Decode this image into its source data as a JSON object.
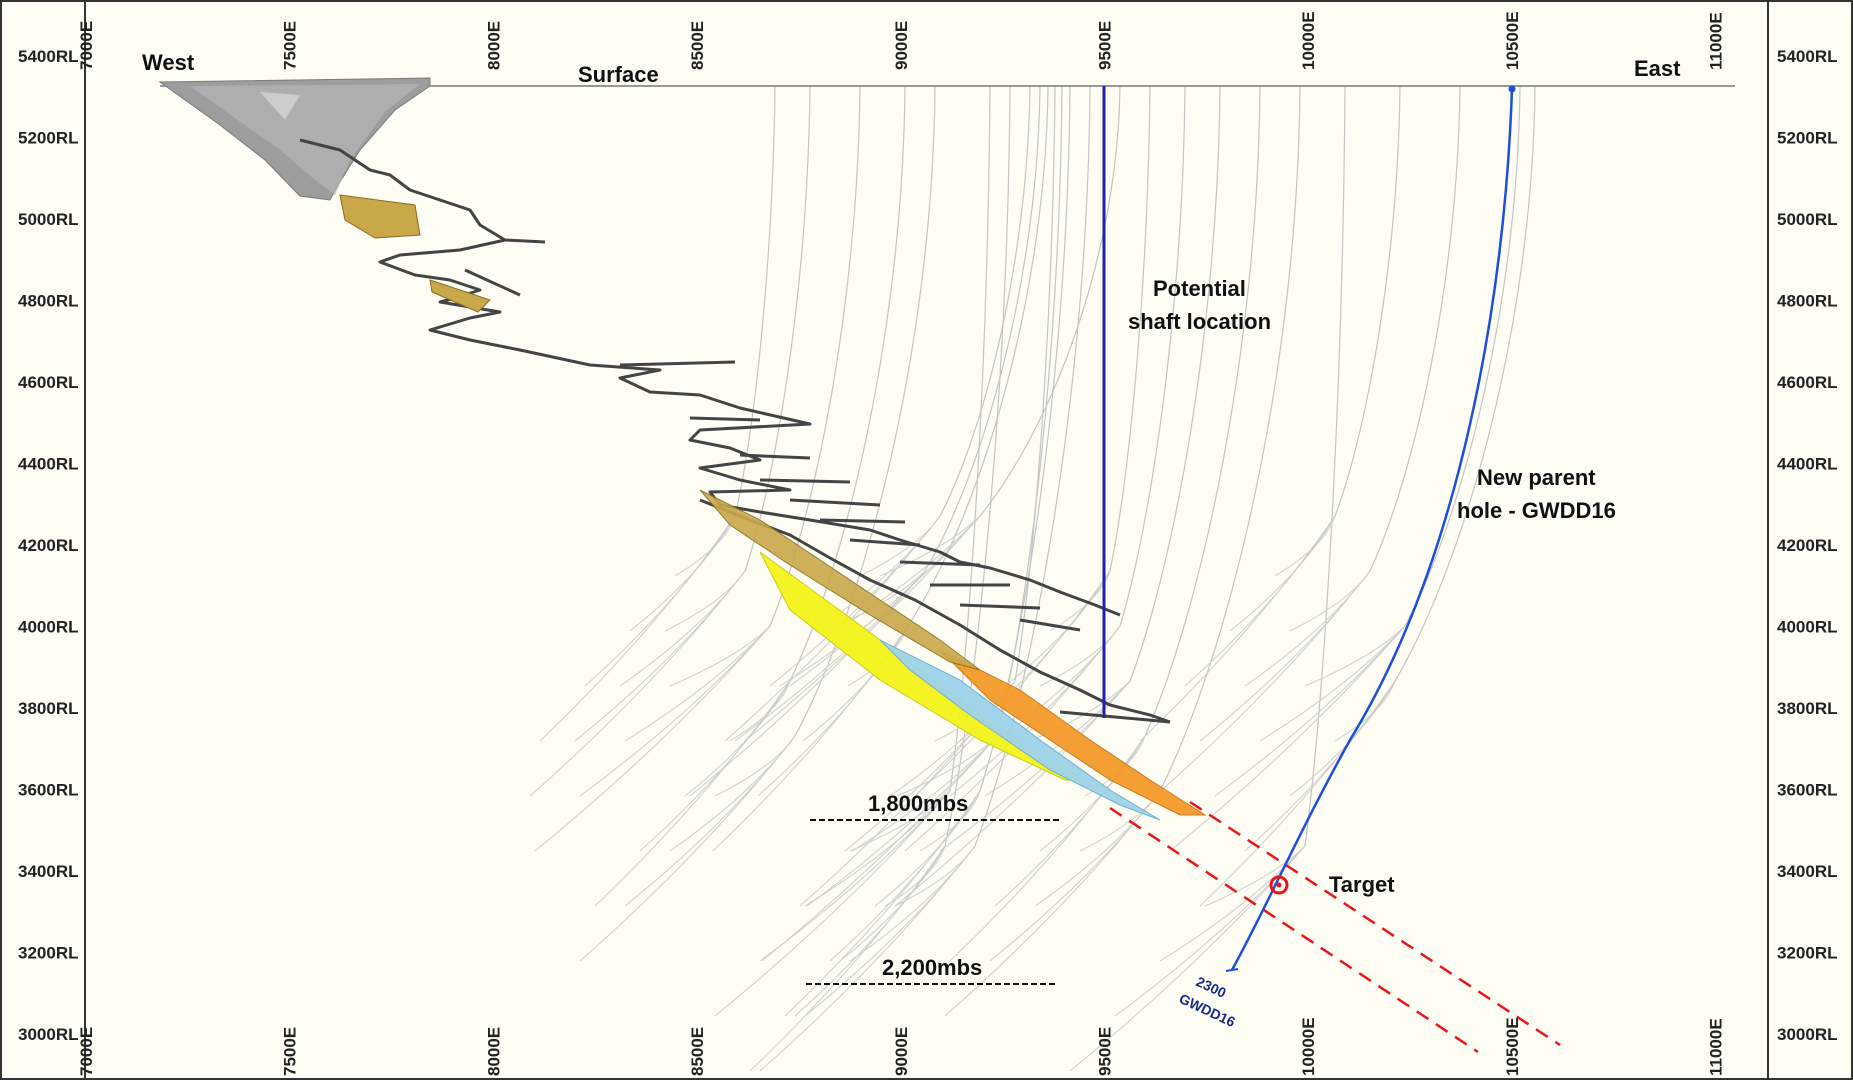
{
  "figure": {
    "west_label": "West",
    "east_label": "East",
    "surface_label": "Surface",
    "shaft_label_line1": "Potential",
    "shaft_label_line2": "shaft location",
    "parent_hole_line1": "New parent",
    "parent_hole_line2": "hole - GWDD16",
    "target_label": "Target",
    "depth_marker_1": "1,800mbs",
    "depth_marker_2": "2,200mbs",
    "hole_depth_label": "2300",
    "hole_id_label": "GWDD16"
  },
  "axes": {
    "rl_labels": [
      "5400RL",
      "5200RL",
      "5000RL",
      "4800RL",
      "4600RL",
      "4400RL",
      "4200RL",
      "4000RL",
      "3800RL",
      "3600RL",
      "3400RL",
      "3200RL",
      "3000RL"
    ],
    "easting_labels": [
      "7000E",
      "7500E",
      "8000E",
      "8500E",
      "9000E",
      "9500E",
      "10000E",
      "10500E",
      "11000E"
    ]
  },
  "colors": {
    "background": "#fdfdf3",
    "shaft_line": "#1f1fb4",
    "parent_hole": "#1e4fd8",
    "target_zone": "#e8161c",
    "drillholes": "#c4c4c4",
    "workings": "#444444",
    "orebody_yellow": "#f4f41a",
    "orebody_blue": "#9fd3ea",
    "orebody_orange": "#f39a2a",
    "orebody_gold": "#c9a84a",
    "open_pit": "#9d9d9d"
  }
}
